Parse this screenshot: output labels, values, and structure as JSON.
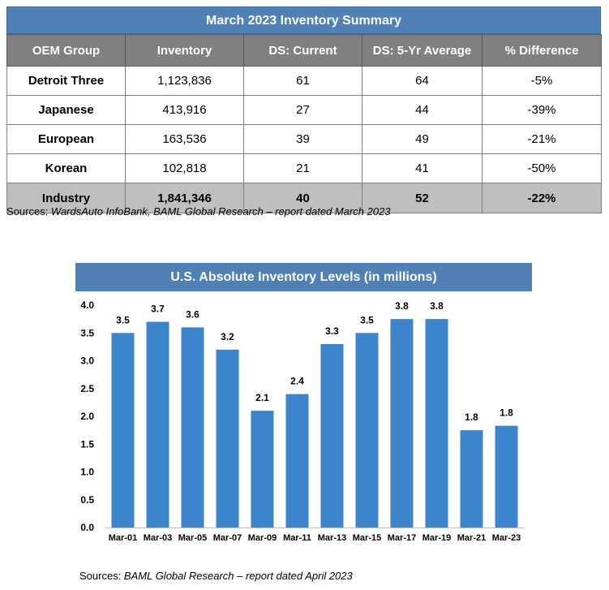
{
  "colors": {
    "header_blue": "#4f81b6",
    "bar_blue": "#3c85cc",
    "table_header_gray": "#808080",
    "total_row_gray": "#bfbfbf"
  },
  "table": {
    "title": "March 2023 Inventory Summary",
    "columns": [
      "OEM Group",
      "Inventory",
      "DS: Current",
      "DS: 5-Yr Average",
      "% Difference"
    ],
    "rows": [
      [
        "Detroit Three",
        "1,123,836",
        "61",
        "64",
        "-5%"
      ],
      [
        "Japanese",
        "413,916",
        "27",
        "44",
        "-39%"
      ],
      [
        "European",
        "163,536",
        "39",
        "49",
        "-21%"
      ],
      [
        "Korean",
        "102,818",
        "21",
        "41",
        "-50%"
      ]
    ],
    "total": [
      "Industry",
      "1,841,346",
      "40",
      "52",
      "-22%"
    ],
    "source_prefix": "Sources: ",
    "source_text": "WardsAuto InfoBank, BAML Global Research – report dated March 2023"
  },
  "chart_data": {
    "type": "bar",
    "title": "U.S. Absolute Inventory Levels (in millions)",
    "categories": [
      "Mar-01",
      "Mar-03",
      "Mar-05",
      "Mar-07",
      "Mar-09",
      "Mar-11",
      "Mar-13",
      "Mar-15",
      "Mar-17",
      "Mar-19",
      "Mar-21",
      "Mar-23"
    ],
    "values": [
      3.5,
      3.7,
      3.6,
      3.2,
      2.1,
      2.4,
      3.3,
      3.5,
      3.75,
      3.75,
      1.75,
      1.83
    ],
    "value_labels": [
      "3.5",
      "3.7",
      "3.6",
      "3.2",
      "2.1",
      "2.4",
      "3.3",
      "3.5",
      "3.8",
      "3.8",
      "1.8",
      "1.8"
    ],
    "yticks": [
      "0.0",
      "0.5",
      "1.0",
      "1.5",
      "2.0",
      "2.5",
      "3.0",
      "3.5",
      "4.0"
    ],
    "ylim": [
      0,
      4
    ],
    "xlabel": "",
    "ylabel": "",
    "grid": false
  },
  "chart_source_prefix": "Sources: ",
  "chart_source_text": "BAML Global Research – report dated April 2023"
}
